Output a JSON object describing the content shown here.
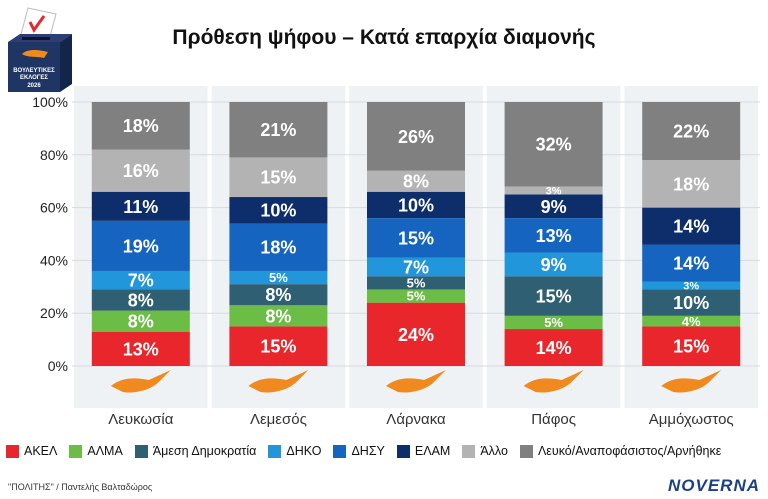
{
  "title": "Πρόθεση ψήφου – Κατά επαρχία διαμονής",
  "logo": {
    "text_lines": [
      "ΒΟΥΛΕΥΤΙΚΕΣ",
      "ΕΚΛΟΓΕΣ",
      "2026"
    ]
  },
  "colors": {
    "background_panel": "#eff2f5",
    "series": [
      "#e8262b",
      "#6cbd45",
      "#2f5f72",
      "#2196db",
      "#1565c0",
      "#0d2d6b",
      "#b3b3b3",
      "#808080"
    ],
    "map": "#f08a1e"
  },
  "chart_data": {
    "type": "bar",
    "stacked": true,
    "title": "Πρόθεση ψήφου – Κατά επαρχία διαμονής",
    "categories": [
      "Λευκωσία",
      "Λεμεσός",
      "Λάρνακα",
      "Πάφος",
      "Αμμόχωστος"
    ],
    "yticks": [
      "0%",
      "20%",
      "40%",
      "60%",
      "80%",
      "100%"
    ],
    "ylim": [
      0,
      100
    ],
    "grid": true,
    "legend_position": "bottom",
    "series": [
      {
        "name": "ΑΚΕΛ",
        "values": [
          13,
          15,
          24,
          14,
          15
        ],
        "labels": [
          "13%",
          "15%",
          "24%",
          "14%",
          "15%"
        ]
      },
      {
        "name": "ΑΛΜΑ",
        "values": [
          8,
          8,
          5,
          5,
          4
        ],
        "labels": [
          "8%",
          "8%",
          "5%",
          "5%",
          "4%"
        ]
      },
      {
        "name": "Άμεση Δημοκρατία",
        "values": [
          8,
          8,
          5,
          15,
          10
        ],
        "labels": [
          "8%",
          "8%",
          "5%",
          "15%",
          "10%"
        ]
      },
      {
        "name": "ΔΗΚΟ",
        "values": [
          7,
          5,
          7,
          9,
          3
        ],
        "labels": [
          "7%",
          "5%",
          "7%",
          "9%",
          "3%"
        ]
      },
      {
        "name": "ΔΗΣΥ",
        "values": [
          19,
          18,
          15,
          13,
          14
        ],
        "labels": [
          "19%",
          "18%",
          "15%",
          "13%",
          "14%"
        ]
      },
      {
        "name": "ΕΛΑΜ",
        "values": [
          11,
          10,
          10,
          9,
          14
        ],
        "labels": [
          "11%",
          "10%",
          "10%",
          "9%",
          "14%"
        ]
      },
      {
        "name": "Άλλο",
        "values": [
          16,
          15,
          8,
          3,
          18
        ],
        "labels": [
          "16%",
          "15%",
          "8%",
          "3%",
          "18%"
        ]
      },
      {
        "name": "Λευκό/Αναποφάσιστος/Αρνήθηκε",
        "values": [
          18,
          21,
          26,
          32,
          22
        ],
        "labels": [
          "18%",
          "21%",
          "26%",
          "32%",
          "22%"
        ]
      }
    ]
  },
  "footer": {
    "credit": "\"ΠΟΛΙΤΗΣ\" / Παντελής Βαλταδώρος",
    "brand": "NOVERNA"
  }
}
